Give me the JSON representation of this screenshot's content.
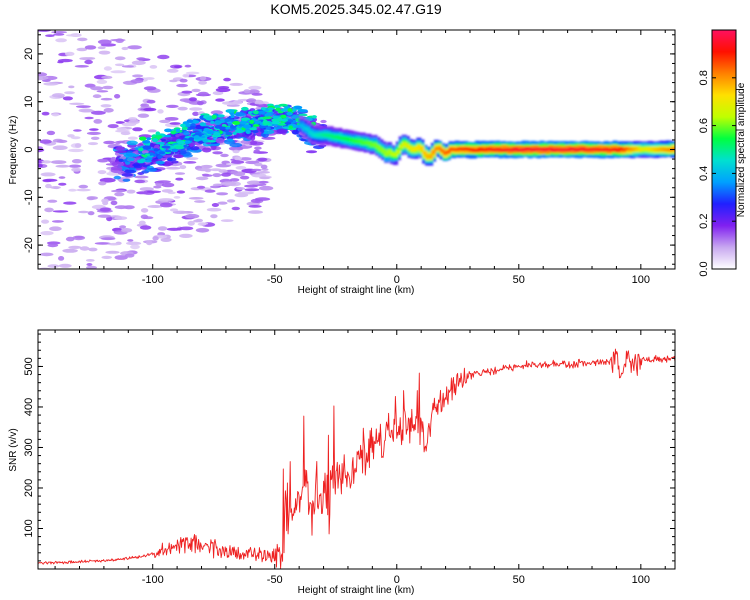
{
  "title": "KOM5.2025.345.02.47.G19",
  "chart_data": [
    {
      "type": "heatmap",
      "name": "spectrogram",
      "xlabel": "Height of straight line (km)",
      "ylabel": "Frequency (Hz)",
      "xlim": [
        -147,
        114
      ],
      "ylim": [
        -25,
        25
      ],
      "xticks": [
        -100,
        -50,
        0,
        50,
        100
      ],
      "yticks": [
        -20,
        -10,
        0,
        10,
        20
      ],
      "colorbar": {
        "label": "Normalized spectral amplitude",
        "range": [
          0,
          1
        ],
        "ticks": [
          "0.0",
          "0.2",
          "0.4",
          "0.6",
          "0.8"
        ],
        "colormap": [
          "#ffffff",
          "#c8a8f0",
          "#8020f0",
          "#2020ff",
          "#00a0ff",
          "#00e0d0",
          "#00ff40",
          "#c0ff00",
          "#ffe000",
          "#ff8000",
          "#ff1000",
          "#ff1060"
        ]
      },
      "ridge": {
        "description": "dominant frequency track",
        "height_km": [
          -110,
          -100,
          -90,
          -80,
          -70,
          -60,
          -50,
          -40,
          -35,
          -30,
          -20,
          -10,
          -5,
          0,
          5,
          10,
          20,
          30,
          50,
          70,
          90,
          100,
          114
        ],
        "frequency_hz": [
          -3,
          -1,
          1,
          3,
          4,
          5,
          6,
          5,
          3,
          3,
          2,
          1,
          -1,
          0,
          1,
          -1,
          0,
          0,
          0,
          0,
          0,
          0,
          0
        ],
        "amplitude": [
          0.15,
          0.2,
          0.3,
          0.35,
          0.4,
          0.4,
          0.35,
          0.4,
          0.45,
          0.5,
          0.55,
          0.6,
          0.62,
          0.65,
          0.7,
          0.75,
          0.85,
          0.9,
          0.95,
          0.95,
          0.92,
          0.7,
          0.85
        ]
      }
    },
    {
      "type": "line",
      "name": "snr",
      "xlabel": "Height of straight line (km)",
      "ylabel": "SNR (v/v)",
      "xlim": [
        -147,
        114
      ],
      "ylim": [
        0,
        590
      ],
      "xticks": [
        -100,
        -50,
        0,
        50,
        100
      ],
      "yticks": [
        100,
        200,
        300,
        400,
        500
      ],
      "color": "#ee2020",
      "series": [
        {
          "name": "SNR",
          "x": [
            -147,
            -130,
            -115,
            -105,
            -95,
            -90,
            -85,
            -80,
            -75,
            -70,
            -65,
            -60,
            -55,
            -50,
            -47,
            -45,
            -40,
            -38,
            -35,
            -30,
            -28,
            -25,
            -20,
            -15,
            -10,
            -5,
            0,
            5,
            10,
            12,
            15,
            20,
            25,
            30,
            35,
            40,
            50,
            60,
            70,
            80,
            90,
            92,
            95,
            97,
            100,
            105,
            114
          ],
          "y": [
            15,
            18,
            22,
            30,
            45,
            60,
            65,
            60,
            55,
            45,
            40,
            35,
            30,
            30,
            60,
            100,
            150,
            220,
            160,
            200,
            150,
            260,
            220,
            280,
            300,
            330,
            350,
            360,
            360,
            300,
            400,
            430,
            460,
            480,
            485,
            490,
            500,
            505,
            505,
            510,
            515,
            470,
            520,
            500,
            515,
            515,
            520
          ]
        }
      ]
    }
  ]
}
